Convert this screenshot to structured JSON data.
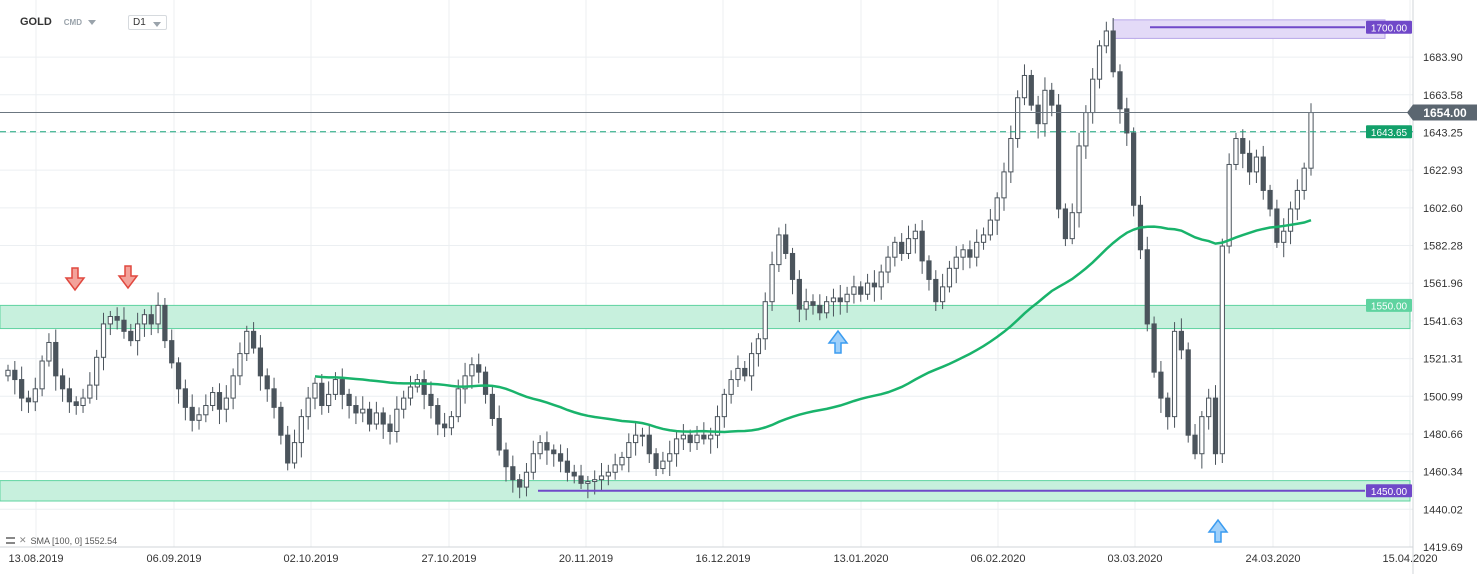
{
  "header": {
    "symbol": "GOLD",
    "source": "CMD",
    "timeframe": "D1"
  },
  "indicator": {
    "label": "SMA [100, 0] 1552.54"
  },
  "colors": {
    "up_candle": "#ffffff",
    "down_candle": "#4b545c",
    "wick": "#4b545c",
    "sma": "#19b36b",
    "zone_fill": "#c7f0dd",
    "zone_border": "#5fd3a0",
    "purple": "#7048c9",
    "purple_fill": "#e3daf7",
    "price_label": "#5b6670",
    "green_label": "#12a06a",
    "arrow_red": "#e0483f",
    "arrow_blue": "#3b9cf0",
    "grid": "#eceff2",
    "axis_text": "#333333"
  },
  "chart_data": {
    "type": "candlestick",
    "title": "GOLD",
    "ylim": [
      1419.69,
      1705
    ],
    "y_ticks": [
      "1683.90",
      "1663.58",
      "1643.25",
      "1622.93",
      "1602.60",
      "1582.28",
      "1561.96",
      "1541.63",
      "1521.31",
      "1500.99",
      "1480.66",
      "1460.34",
      "1440.02",
      "1419.69"
    ],
    "x_ticks": [
      "13.08.2019",
      "06.09.2019",
      "02.10.2019",
      "27.10.2019",
      "20.11.2019",
      "16.12.2019",
      "13.01.2020",
      "06.02.2020",
      "03.03.2020",
      "24.03.2020",
      "15.04.2020"
    ],
    "price_labels": {
      "current": "1654.00",
      "dashed": "1643.65",
      "zone_top": "1550.00",
      "resistance": "1700.00",
      "support": "1450.00"
    },
    "levels": {
      "current": 1654.0,
      "dashed": 1643.65,
      "resistance": 1700.0,
      "support": 1450.0
    },
    "zones": [
      {
        "name": "zone-1550",
        "low": 1537.5,
        "high": 1550.0
      },
      {
        "name": "zone-1450",
        "low": 1444.5,
        "high": 1455.5
      },
      {
        "name": "zone-1700",
        "low": 1694.0,
        "high": 1704.0
      }
    ],
    "candles_close": [
      1515,
      1510,
      1500,
      1498,
      1505,
      1520,
      1530,
      1512,
      1505,
      1498,
      1496,
      1500,
      1507,
      1522,
      1540,
      1544,
      1542,
      1536,
      1531,
      1540,
      1545,
      1540,
      1550,
      1531,
      1519,
      1505,
      1495,
      1488,
      1491,
      1496,
      1503,
      1494,
      1500,
      1512,
      1524,
      1536,
      1527,
      1512,
      1505,
      1495,
      1480,
      1465,
      1476,
      1490,
      1500,
      1508,
      1496,
      1502,
      1510,
      1502,
      1496,
      1492,
      1494,
      1486,
      1492,
      1486,
      1482,
      1494,
      1500,
      1506,
      1510,
      1502,
      1496,
      1486,
      1484,
      1490,
      1505,
      1512,
      1518,
      1514,
      1502,
      1489,
      1472,
      1463,
      1456,
      1452,
      1460,
      1470,
      1476,
      1472,
      1470,
      1466,
      1460,
      1458,
      1454,
      1455,
      1456,
      1458,
      1460,
      1464,
      1468,
      1476,
      1480,
      1480,
      1470,
      1462,
      1466,
      1470,
      1478,
      1480,
      1476,
      1480,
      1478,
      1480,
      1490,
      1502,
      1510,
      1516,
      1512,
      1524,
      1532,
      1552,
      1572,
      1588,
      1578,
      1564,
      1548,
      1552,
      1550,
      1546,
      1552,
      1554,
      1552,
      1556,
      1560,
      1556,
      1562,
      1560,
      1568,
      1576,
      1584,
      1578,
      1586,
      1590,
      1574,
      1564,
      1552,
      1560,
      1570,
      1576,
      1580,
      1576,
      1584,
      1588,
      1596,
      1608,
      1622,
      1640,
      1662,
      1674,
      1658,
      1648,
      1666,
      1658,
      1602,
      1586,
      1600,
      1636,
      1654,
      1672,
      1690,
      1698,
      1676,
      1656,
      1643,
      1604,
      1580,
      1540,
      1514,
      1500,
      1490,
      1536,
      1526,
      1480,
      1470,
      1490,
      1500,
      1470,
      1582,
      1626,
      1640,
      1632,
      1622,
      1630,
      1612,
      1602,
      1584,
      1590,
      1602,
      1612,
      1624,
      1654
    ]
  }
}
